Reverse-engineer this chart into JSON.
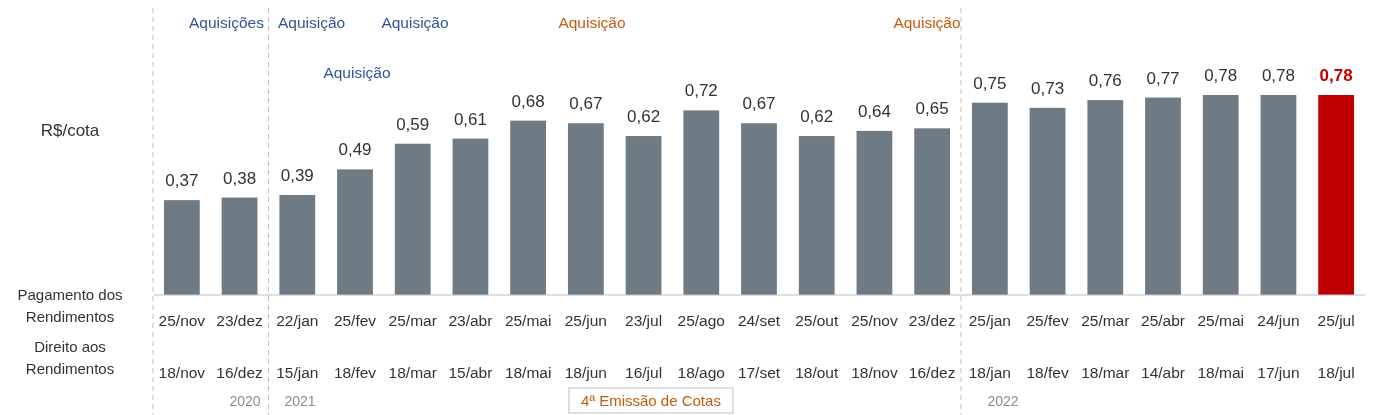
{
  "chart_data": {
    "type": "bar",
    "ylabel": "R$/cota",
    "categories": [
      "25/nov\n18/nov",
      "23/dez\n16/dez",
      "22/jan\n15/jan",
      "25/fev\n18/fev",
      "25/mar\n18/mar",
      "23/abr\n15/abr",
      "25/mai\n18/mai",
      "25/jun\n18/jun",
      "23/jul\n16/jul",
      "25/ago\n18/ago",
      "24/set\n17/set",
      "25/out\n18/out",
      "25/nov\n18/nov",
      "23/dez\n16/dez",
      "25/jan\n18/jan",
      "25/fev\n18/fev",
      "25/mar\n18/mar",
      "25/abr\n14/abr",
      "25/mai\n18/mai",
      "24/jun\n17/jun",
      "25/jul\n18/jul"
    ],
    "values": [
      0.37,
      0.38,
      0.39,
      0.49,
      0.59,
      0.61,
      0.68,
      0.67,
      0.62,
      0.72,
      0.67,
      0.62,
      0.64,
      0.65,
      0.75,
      0.73,
      0.76,
      0.77,
      0.78,
      0.78,
      0.78
    ],
    "value_labels": [
      "0,37",
      "0,38",
      "0,39",
      "0,49",
      "0,59",
      "0,61",
      "0,68",
      "0,67",
      "0,62",
      "0,72",
      "0,67",
      "0,62",
      "0,64",
      "0,65",
      "0,75",
      "0,73",
      "0,76",
      "0,77",
      "0,78",
      "0,78",
      "0,78"
    ],
    "colors": [
      "#6e7b85",
      "#6e7b85",
      "#6e7b85",
      "#6e7b85",
      "#6e7b85",
      "#6e7b85",
      "#6e7b85",
      "#6e7b85",
      "#6e7b85",
      "#6e7b85",
      "#6e7b85",
      "#6e7b85",
      "#6e7b85",
      "#6e7b85",
      "#6e7b85",
      "#6e7b85",
      "#6e7b85",
      "#6e7b85",
      "#6e7b85",
      "#6e7b85",
      "#c00000"
    ],
    "annotations": [
      "Pagamento dos\nRendimentos",
      "Direito aos\nRendimentos",
      "Aquisições",
      "Aquisição",
      "Aquisição",
      "Aquisição",
      "Aquisição",
      "Aquisição",
      "2020",
      "2021",
      "2022",
      "4ª Emissão de Cotas"
    ]
  }
}
